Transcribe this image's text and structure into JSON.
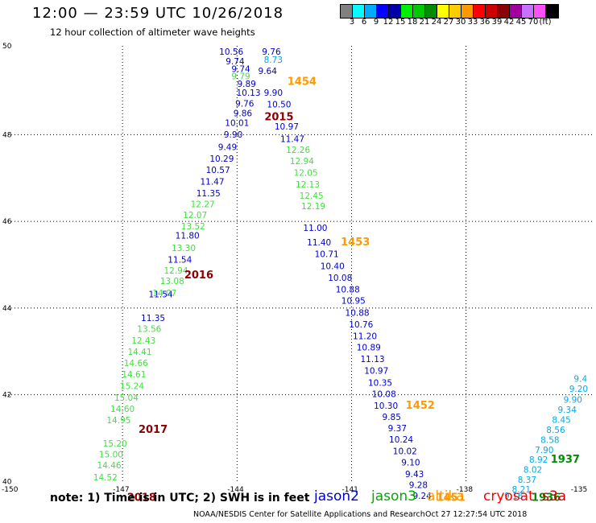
{
  "header": {
    "title": "12:00 — 23:59 UTC 10/26/2018",
    "subtitle": "12 hour collection of altimeter wave heights"
  },
  "legend": {
    "swatches": [
      "#808080",
      "#00ffff",
      "#00aaff",
      "#0000ff",
      "#0000aa",
      "#00ee00",
      "#00c800",
      "#008c00",
      "#ffff00",
      "#ffcc00",
      "#ff9900",
      "#ff0000",
      "#cc0000",
      "#8b0000",
      "#a000a0",
      "#c870ff",
      "#ff50ff",
      "#000000"
    ],
    "labels": [
      "3",
      "6",
      "9",
      "12",
      "15",
      "18",
      "21",
      "24",
      "27",
      "30",
      "33",
      "36",
      "39",
      "42",
      "45",
      "70",
      "(ft)"
    ]
  },
  "axes": {
    "lon_labels": [
      "-150",
      "-147",
      "-144",
      "-141",
      "-138",
      "-135"
    ],
    "lat_labels": [
      "50",
      "48",
      "46",
      "44",
      "42",
      "40"
    ]
  },
  "map": {
    "lon_range": [
      -150,
      -134.7
    ],
    "lat_range": [
      39.95,
      50.05
    ],
    "tracks": [
      {
        "name": "jason2",
        "color": "#0000cc",
        "points": [
          {
            "lon": -144.15,
            "lat": 49.85,
            "swh": "10.56"
          },
          {
            "lon": -144.05,
            "lat": 49.62,
            "swh": "9.74"
          },
          {
            "lon": -143.9,
            "lat": 49.45,
            "swh": "9.74"
          },
          {
            "lon": -143.75,
            "lat": 49.1,
            "swh": "9.89"
          },
          {
            "lon": -143.7,
            "lat": 48.9,
            "swh": "10.13"
          },
          {
            "lon": -143.8,
            "lat": 48.65,
            "swh": "9.76"
          },
          {
            "lon": -143.85,
            "lat": 48.43,
            "swh": "9.86"
          },
          {
            "lon": -144.0,
            "lat": 48.2,
            "swh": "10.01"
          },
          {
            "lon": -144.1,
            "lat": 47.93,
            "swh": "9.90"
          },
          {
            "lon": -144.25,
            "lat": 47.65,
            "swh": "9.49"
          },
          {
            "lon": -144.4,
            "lat": 47.38,
            "swh": "10.29"
          },
          {
            "lon": -144.5,
            "lat": 47.12,
            "swh": "10.57"
          },
          {
            "lon": -144.65,
            "lat": 46.85,
            "swh": "11.47"
          },
          {
            "lon": -144.75,
            "lat": 46.58,
            "swh": "11.35"
          },
          {
            "lon": -145.3,
            "lat": 45.6,
            "swh": "11.80"
          },
          {
            "lon": -145.5,
            "lat": 45.05,
            "swh": "11.54"
          },
          {
            "lon": -146.0,
            "lat": 44.25,
            "swh": "11.54"
          },
          {
            "lon": -146.2,
            "lat": 43.7,
            "swh": "11.35"
          },
          {
            "lon": -143.1,
            "lat": 49.85,
            "swh": "9.76"
          },
          {
            "lon": -143.2,
            "lat": 49.4,
            "swh": "9.64"
          },
          {
            "lon": -143.05,
            "lat": 48.9,
            "swh": "9.90"
          },
          {
            "lon": -142.9,
            "lat": 48.63,
            "swh": "10.50"
          },
          {
            "lon": -142.7,
            "lat": 48.12,
            "swh": "10.97"
          },
          {
            "lon": -142.55,
            "lat": 47.83,
            "swh": "11.47"
          },
          {
            "lon": -141.95,
            "lat": 45.78,
            "swh": "11.00"
          },
          {
            "lon": -141.85,
            "lat": 45.45,
            "swh": "11.40"
          },
          {
            "lon": -141.65,
            "lat": 45.18,
            "swh": "10.71"
          },
          {
            "lon": -141.5,
            "lat": 44.9,
            "swh": "10.40"
          },
          {
            "lon": -141.3,
            "lat": 44.63,
            "swh": "10.08"
          },
          {
            "lon": -141.1,
            "lat": 44.36,
            "swh": "10.88"
          },
          {
            "lon": -140.95,
            "lat": 44.1,
            "swh": "10.95"
          },
          {
            "lon": -140.85,
            "lat": 43.82,
            "swh": "10.88"
          },
          {
            "lon": -140.75,
            "lat": 43.55,
            "swh": "10.76"
          },
          {
            "lon": -140.65,
            "lat": 43.28,
            "swh": "11.20"
          },
          {
            "lon": -140.55,
            "lat": 43.02,
            "swh": "10.89"
          },
          {
            "lon": -140.45,
            "lat": 42.75,
            "swh": "11.13"
          },
          {
            "lon": -140.35,
            "lat": 42.48,
            "swh": "10.97"
          },
          {
            "lon": -140.25,
            "lat": 42.21,
            "swh": "10.35"
          },
          {
            "lon": -140.15,
            "lat": 41.95,
            "swh": "10.08"
          },
          {
            "lon": -140.1,
            "lat": 41.68,
            "swh": "10.30"
          },
          {
            "lon": -139.95,
            "lat": 41.42,
            "swh": "9.85"
          },
          {
            "lon": -139.8,
            "lat": 41.16,
            "swh": "9.37"
          },
          {
            "lon": -139.7,
            "lat": 40.9,
            "swh": "10.24"
          },
          {
            "lon": -139.6,
            "lat": 40.63,
            "swh": "10.02"
          },
          {
            "lon": -139.45,
            "lat": 40.37,
            "swh": "9.10"
          },
          {
            "lon": -139.35,
            "lat": 40.1,
            "swh": "9.43"
          },
          {
            "lon": -139.25,
            "lat": 39.85,
            "swh": "9.28"
          },
          {
            "lon": -139.15,
            "lat": 39.6,
            "swh": "9.24"
          }
        ]
      },
      {
        "name": "jason3",
        "color": "#44dd44",
        "points": [
          {
            "lon": -143.9,
            "lat": 49.28,
            "swh": "9.79"
          },
          {
            "lon": -142.4,
            "lat": 47.58,
            "swh": "12.26"
          },
          {
            "lon": -142.3,
            "lat": 47.32,
            "swh": "12.94"
          },
          {
            "lon": -142.2,
            "lat": 47.05,
            "swh": "12.05"
          },
          {
            "lon": -142.15,
            "lat": 46.78,
            "swh": "12.13"
          },
          {
            "lon": -142.05,
            "lat": 46.52,
            "swh": "12.45"
          },
          {
            "lon": -142.0,
            "lat": 46.28,
            "swh": "12.19"
          },
          {
            "lon": -144.9,
            "lat": 46.33,
            "swh": "12.27"
          },
          {
            "lon": -145.1,
            "lat": 46.08,
            "swh": "12.07"
          },
          {
            "lon": -145.15,
            "lat": 45.82,
            "swh": "13.52"
          },
          {
            "lon": -145.4,
            "lat": 45.32,
            "swh": "13.30"
          },
          {
            "lon": -145.6,
            "lat": 44.8,
            "swh": "12.94"
          },
          {
            "lon": -145.7,
            "lat": 44.55,
            "swh": "13.08"
          },
          {
            "lon": -145.9,
            "lat": 44.28,
            "swh": "14.07"
          },
          {
            "lon": -146.3,
            "lat": 43.45,
            "swh": "13.56"
          },
          {
            "lon": -146.45,
            "lat": 43.18,
            "swh": "12.43"
          },
          {
            "lon": -146.55,
            "lat": 42.92,
            "swh": "14.41"
          },
          {
            "lon": -146.65,
            "lat": 42.66,
            "swh": "14.66"
          },
          {
            "lon": -146.7,
            "lat": 42.4,
            "swh": "14.61"
          },
          {
            "lon": -146.75,
            "lat": 42.13,
            "swh": "15.24"
          },
          {
            "lon": -146.9,
            "lat": 41.86,
            "swh": "15.04"
          },
          {
            "lon": -147.0,
            "lat": 41.6,
            "swh": "14.60"
          },
          {
            "lon": -147.1,
            "lat": 41.34,
            "swh": "14.95"
          },
          {
            "lon": -147.2,
            "lat": 40.8,
            "swh": "15.20"
          },
          {
            "lon": -147.3,
            "lat": 40.55,
            "swh": "15.00"
          },
          {
            "lon": -147.35,
            "lat": 40.3,
            "swh": "14.46"
          },
          {
            "lon": -147.45,
            "lat": 40.02,
            "swh": "14.52"
          }
        ]
      },
      {
        "name": "altika",
        "color": "#00aaee",
        "points": [
          {
            "lon": -143.05,
            "lat": 49.66,
            "swh": "8.73"
          },
          {
            "lon": -135.0,
            "lat": 42.3,
            "swh": "9.4"
          },
          {
            "lon": -135.05,
            "lat": 42.07,
            "swh": "9.20"
          },
          {
            "lon": -135.2,
            "lat": 41.82,
            "swh": "9.90"
          },
          {
            "lon": -135.35,
            "lat": 41.58,
            "swh": "9.34"
          },
          {
            "lon": -135.5,
            "lat": 41.35,
            "swh": "8.45"
          },
          {
            "lon": -135.65,
            "lat": 41.12,
            "swh": "8.56"
          },
          {
            "lon": -135.8,
            "lat": 40.89,
            "swh": "8.58"
          },
          {
            "lon": -135.95,
            "lat": 40.66,
            "swh": "7.90"
          },
          {
            "lon": -136.1,
            "lat": 40.43,
            "swh": "8.92"
          },
          {
            "lon": -136.25,
            "lat": 40.2,
            "swh": "8.02"
          },
          {
            "lon": -136.4,
            "lat": 39.97,
            "swh": "8.37"
          },
          {
            "lon": -136.55,
            "lat": 39.75,
            "swh": "8.21"
          },
          {
            "lon": -136.75,
            "lat": 39.6,
            "swh": "9.16"
          }
        ]
      }
    ],
    "pass_labels": [
      {
        "text": "1454",
        "lon": -142.3,
        "lat": 49.15,
        "color": "#ff9900"
      },
      {
        "text": "2015",
        "lon": -142.9,
        "lat": 48.33,
        "color": "#8b0000"
      },
      {
        "text": "1453",
        "lon": -140.9,
        "lat": 45.45,
        "color": "#ff9900"
      },
      {
        "text": "2016",
        "lon": -145.0,
        "lat": 44.68,
        "color": "#8b0000"
      },
      {
        "text": "1452",
        "lon": -139.2,
        "lat": 41.68,
        "color": "#ff9900"
      },
      {
        "text": "2017",
        "lon": -146.2,
        "lat": 41.12,
        "color": "#8b0000"
      },
      {
        "text": "1451",
        "lon": -138.4,
        "lat": 39.55,
        "color": "#ff9900"
      },
      {
        "text": "2018",
        "lon": -146.5,
        "lat": 39.55,
        "color": "#8b0000"
      },
      {
        "text": "1937",
        "lon": -135.4,
        "lat": 40.43,
        "color": "#008c00"
      },
      {
        "text": "1936",
        "lon": -135.9,
        "lat": 39.55,
        "color": "#008c00"
      }
    ]
  },
  "footer": {
    "note": "note: 1) Time is in UTC; 2) SWH is in feet",
    "satellites": [
      {
        "name": "jason2",
        "color": "#0000cc"
      },
      {
        "name": "jason3",
        "color": "#00aa00"
      },
      {
        "name": "altika",
        "color": "#ff9900"
      },
      {
        "name": "cryosat",
        "color": "#ff0000"
      },
      {
        "name": "s3a",
        "color": "#cc0000"
      }
    ],
    "credit": "NOAA/NESDIS Center for Satellite Applications and Research",
    "timestamp": "Oct 27 12:27:54 UTC 2018"
  }
}
